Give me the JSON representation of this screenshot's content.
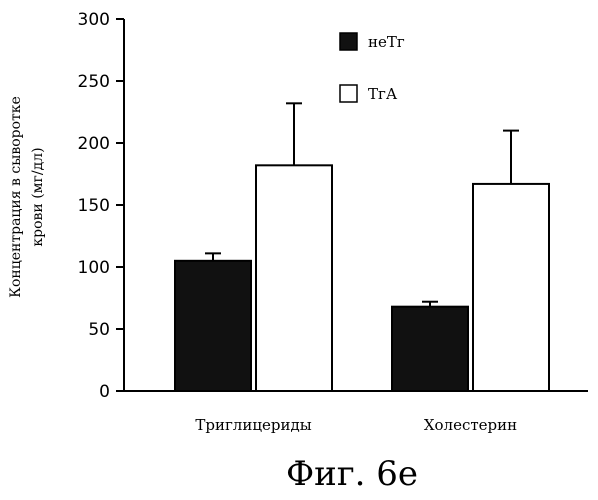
{
  "chart_data": {
    "type": "bar",
    "categories": [
      "Триглицериды",
      "Холестерин"
    ],
    "series": [
      {
        "name": "неТг",
        "values": [
          105,
          68
        ],
        "errors": [
          6,
          4
        ],
        "color": "#111111"
      },
      {
        "name": "ТгА",
        "values": [
          182,
          167
        ],
        "errors": [
          50,
          43
        ],
        "color": "#ffffff"
      }
    ],
    "ylabel_lines": [
      "Концентрация в сыворотке",
      "крови (мг/дл)"
    ],
    "ylim": [
      0,
      300
    ],
    "yticks": [
      0,
      50,
      100,
      150,
      200,
      250,
      300
    ],
    "grid": false,
    "legend_position": "top-right"
  },
  "caption": "Фиг. 6е"
}
